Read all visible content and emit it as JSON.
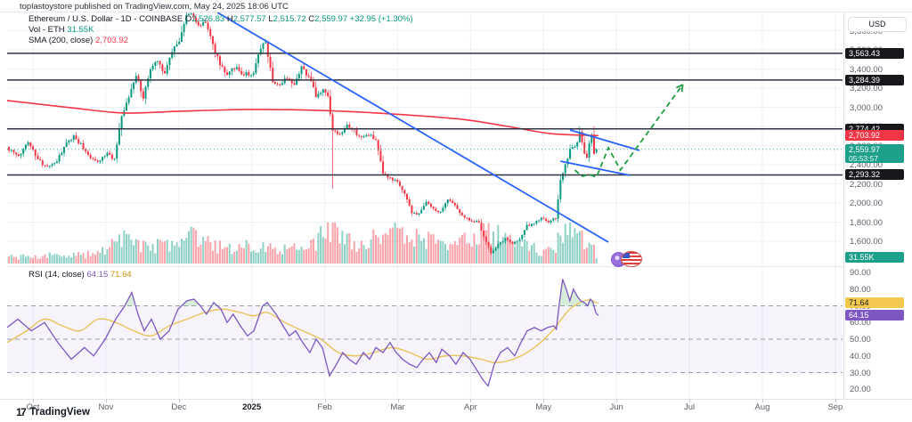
{
  "header": {
    "attribution": "toplastoystore published on TradingView.com, May 24, 2025 18:06 UTC"
  },
  "legend": {
    "title": "Ethereum / U.S. Dollar",
    "meta": "- 1D - COINBASE",
    "o_label": "O",
    "o": "2,526.83",
    "h_label": "H",
    "h": "2,577.57",
    "l_label": "L",
    "l": "2,515.72",
    "c_label": "C",
    "c": "2,559.97",
    "change": "+32.95 (+1.30%)",
    "vol_label": "Vol - ETH",
    "vol": "31.55K",
    "sma_label": "SMA (200, close)",
    "sma": "2,703.92",
    "rsi_label": "RSI (14, close)",
    "rsi_value": "64.15",
    "rsi_ma_value": "71.64"
  },
  "axes": {
    "currency": "USD",
    "price_ticks": [
      3800,
      3600,
      3400,
      3200,
      3000,
      2800,
      2600,
      2400,
      2200,
      2000,
      1800,
      1600
    ],
    "rsi_ticks": [
      90,
      80,
      70,
      60,
      50,
      40,
      30,
      20
    ],
    "months": [
      "Oct",
      "Nov",
      "Dec",
      "2025",
      "Feb",
      "Mar",
      "Apr",
      "May",
      "Jun",
      "Jul",
      "Aug",
      "Sep"
    ],
    "bold_month_index": 3
  },
  "badges": {
    "price": [
      {
        "text": "3,563.43",
        "price": 3563.43,
        "kind": "dark"
      },
      {
        "text": "3,284.39",
        "price": 3284.39,
        "kind": "dark"
      },
      {
        "text": "2,774.42",
        "price": 2774.42,
        "kind": "dark"
      },
      {
        "text": "2,703.92",
        "price": 2703.92,
        "kind": "red"
      },
      {
        "text": "2,559.97",
        "price": 2559.97,
        "kind": "teal",
        "sub": "05:53:57"
      },
      {
        "text": "2,293.32",
        "price": 2293.32,
        "kind": "dark"
      }
    ],
    "volume": {
      "text": "31.55K",
      "kind": "teal"
    },
    "rsi": [
      {
        "text": "71.64",
        "value": 71.64,
        "kind": "yellow"
      },
      {
        "text": "64.15",
        "value": 64.15,
        "kind": "purple"
      }
    ]
  },
  "colors": {
    "up": "#089981",
    "down": "#f23645",
    "sma": "#f23645",
    "trendline": "#2962ff",
    "projection": "#1f9d40",
    "level": "#2f3240",
    "grid": "#eef1f7",
    "rsi_line": "#7e57c2",
    "rsi_ma": "#e8c35a",
    "rsi_band": "#7e57c2",
    "badge_dark": "#17181c",
    "badge_red": "#f23645",
    "badge_teal": "#1ca089",
    "badge_yellow": "#f2c94c",
    "badge_purple": "#7e57c2",
    "last_price_line": "#26a69a"
  },
  "chart_data": {
    "type": "candlestick",
    "title": "Ethereum / U.S. Dollar, 1D, COINBASE",
    "last_ohlc": {
      "o": 2526.83,
      "h": 2577.57,
      "l": 2515.72,
      "c": 2559.97,
      "change": 32.95,
      "change_pct": 1.3
    },
    "price_axis_range_approx": [
      1390,
      3990
    ],
    "render_seed": 42,
    "price_keyframes": [
      [
        -11,
        2580
      ],
      [
        -6,
        2480
      ],
      [
        -2,
        2650
      ],
      [
        2,
        2450
      ],
      [
        6,
        2370
      ],
      [
        10,
        2440
      ],
      [
        14,
        2620
      ],
      [
        17,
        2700
      ],
      [
        20,
        2610
      ],
      [
        24,
        2480
      ],
      [
        27,
        2430
      ],
      [
        31,
        2520
      ],
      [
        34,
        2450
      ],
      [
        37,
        2900
      ],
      [
        40,
        3100
      ],
      [
        43,
        3350
      ],
      [
        46,
        3100
      ],
      [
        49,
        3400
      ],
      [
        52,
        3500
      ],
      [
        55,
        3350
      ],
      [
        58,
        3600
      ],
      [
        61,
        3700
      ],
      [
        64,
        3950
      ],
      [
        66,
        3990
      ],
      [
        69,
        3850
      ],
      [
        72,
        3900
      ],
      [
        75,
        3650
      ],
      [
        78,
        3450
      ],
      [
        81,
        3350
      ],
      [
        84,
        3420
      ],
      [
        87,
        3350
      ],
      [
        92,
        3350
      ],
      [
        95,
        3620
      ],
      [
        97,
        3680
      ],
      [
        100,
        3280
      ],
      [
        103,
        3220
      ],
      [
        106,
        3320
      ],
      [
        109,
        3250
      ],
      [
        112,
        3430
      ],
      [
        115,
        3320
      ],
      [
        118,
        3120
      ],
      [
        121,
        3180
      ],
      [
        123,
        3110
      ],
      [
        125,
        2750
      ],
      [
        128,
        2700
      ],
      [
        131,
        2800
      ],
      [
        134,
        2750
      ],
      [
        137,
        2680
      ],
      [
        140,
        2720
      ],
      [
        143,
        2650
      ],
      [
        146,
        2300
      ],
      [
        149,
        2250
      ],
      [
        152,
        2220
      ],
      [
        155,
        2100
      ],
      [
        158,
        1900
      ],
      [
        161,
        1880
      ],
      [
        164,
        2020
      ],
      [
        167,
        1930
      ],
      [
        170,
        1900
      ],
      [
        173,
        2050
      ],
      [
        176,
        1980
      ],
      [
        179,
        1870
      ],
      [
        182,
        1830
      ],
      [
        186,
        1790
      ],
      [
        189,
        1590
      ],
      [
        191,
        1480
      ],
      [
        194,
        1560
      ],
      [
        197,
        1630
      ],
      [
        200,
        1580
      ],
      [
        203,
        1620
      ],
      [
        206,
        1760
      ],
      [
        209,
        1790
      ],
      [
        212,
        1840
      ],
      [
        215,
        1800
      ],
      [
        218,
        1840
      ],
      [
        220,
        2230
      ],
      [
        222,
        2400
      ],
      [
        224,
        2550
      ],
      [
        227,
        2620
      ],
      [
        228,
        2740
      ],
      [
        230,
        2520
      ],
      [
        231,
        2460
      ],
      [
        232,
        2640
      ],
      [
        233,
        2700
      ],
      [
        234,
        2527
      ],
      [
        235,
        2560
      ]
    ],
    "wick_overrides": [
      {
        "day": 66,
        "high": 4090
      },
      {
        "day": 125,
        "low": 2150
      }
    ],
    "day_range": [
      -11,
      235
    ],
    "volume_keyframes": [
      [
        -11,
        60
      ],
      [
        10,
        75
      ],
      [
        25,
        85
      ],
      [
        37,
        220
      ],
      [
        45,
        180
      ],
      [
        55,
        170
      ],
      [
        62,
        200
      ],
      [
        66,
        260
      ],
      [
        75,
        170
      ],
      [
        85,
        140
      ],
      [
        95,
        180
      ],
      [
        105,
        140
      ],
      [
        115,
        130
      ],
      [
        125,
        380
      ],
      [
        132,
        210
      ],
      [
        140,
        180
      ],
      [
        146,
        350
      ],
      [
        152,
        300
      ],
      [
        158,
        260
      ],
      [
        166,
        200
      ],
      [
        175,
        190
      ],
      [
        183,
        210
      ],
      [
        191,
        300
      ],
      [
        198,
        200
      ],
      [
        205,
        160
      ],
      [
        212,
        120
      ],
      [
        218,
        140
      ],
      [
        221,
        320
      ],
      [
        226,
        270
      ],
      [
        230,
        210
      ],
      [
        233,
        170
      ],
      [
        235,
        80
      ]
    ],
    "volume_last_label": "31.55K",
    "sma200_points": [
      [
        -10.8,
        3070
      ],
      [
        16,
        2995
      ],
      [
        38,
        2940
      ],
      [
        60,
        2958
      ],
      [
        90,
        2977
      ],
      [
        120,
        2967
      ],
      [
        150,
        2930
      ],
      [
        179,
        2874
      ],
      [
        198,
        2800
      ],
      [
        216,
        2725
      ],
      [
        235.8,
        2704
      ]
    ],
    "sma200_last": 2703.92,
    "levels": [
      3563.43,
      3284.39,
      2774.42,
      2293.32
    ],
    "last_price": 2559.97,
    "countdown": "05:53:57",
    "trendlines": [
      {
        "name": "main-downtrend",
        "from": [
          77,
          3990
        ],
        "to": [
          240,
          1591
        ]
      },
      {
        "name": "flag-upper",
        "from": [
          224,
          2763
        ],
        "to": [
          253,
          2549
        ]
      },
      {
        "name": "flag-lower",
        "from": [
          220,
          2437
        ],
        "to": [
          249,
          2288
        ]
      }
    ],
    "projection_points": [
      [
        226,
        2344
      ],
      [
        229,
        2279
      ],
      [
        232,
        2298
      ],
      [
        235,
        2270
      ],
      [
        240,
        2577
      ],
      [
        245,
        2344
      ],
      [
        271,
        3237
      ]
    ],
    "rsi": {
      "last": 64.15,
      "ma_last": 71.64,
      "overbought": 70,
      "middle": 50,
      "oversold": 30,
      "points": [
        [
          -10.8,
          57
        ],
        [
          -6.3,
          62
        ],
        [
          -0.7,
          55
        ],
        [
          4.8,
          60
        ],
        [
          10.4,
          48
        ],
        [
          16,
          38
        ],
        [
          21.5,
          45
        ],
        [
          25.3,
          40
        ],
        [
          30.1,
          50
        ],
        [
          34.5,
          62
        ],
        [
          38.3,
          70
        ],
        [
          41.2,
          78
        ],
        [
          43.8,
          65
        ],
        [
          46.4,
          55
        ],
        [
          49.4,
          62
        ],
        [
          53.1,
          50
        ],
        [
          56.8,
          55
        ],
        [
          60.5,
          68
        ],
        [
          64.2,
          73
        ],
        [
          67.2,
          74
        ],
        [
          69.8,
          70
        ],
        [
          72.4,
          65
        ],
        [
          75.4,
          72
        ],
        [
          78.4,
          68
        ],
        [
          81,
          60
        ],
        [
          83.5,
          65
        ],
        [
          86.5,
          58
        ],
        [
          89.5,
          52
        ],
        [
          92.1,
          55
        ],
        [
          95.8,
          70
        ],
        [
          97.7,
          72
        ],
        [
          101.4,
          65
        ],
        [
          104.3,
          58
        ],
        [
          106.9,
          52
        ],
        [
          109.6,
          55
        ],
        [
          112.5,
          48
        ],
        [
          115.5,
          42
        ],
        [
          118.1,
          50
        ],
        [
          120.7,
          45
        ],
        [
          123.7,
          28
        ],
        [
          126.6,
          35
        ],
        [
          129.2,
          42
        ],
        [
          131.8,
          38
        ],
        [
          134.8,
          35
        ],
        [
          137.8,
          42
        ],
        [
          140.4,
          38
        ],
        [
          143,
          45
        ],
        [
          146,
          42
        ],
        [
          148.9,
          48
        ],
        [
          151.5,
          42
        ],
        [
          154.1,
          38
        ],
        [
          157.1,
          35
        ],
        [
          160.1,
          33
        ],
        [
          162.7,
          38
        ],
        [
          165.3,
          42
        ],
        [
          168.2,
          36
        ],
        [
          170.5,
          44
        ],
        [
          173.8,
          40
        ],
        [
          176.4,
          35
        ],
        [
          179.4,
          42
        ],
        [
          182.3,
          38
        ],
        [
          184.9,
          32
        ],
        [
          187.5,
          26
        ],
        [
          189.8,
          22
        ],
        [
          192.4,
          35
        ],
        [
          195,
          42
        ],
        [
          197.9,
          45
        ],
        [
          200.9,
          40
        ],
        [
          203.5,
          48
        ],
        [
          206.1,
          55
        ],
        [
          209.1,
          57
        ],
        [
          212,
          55
        ],
        [
          214.6,
          57
        ],
        [
          217.2,
          58
        ],
        [
          218.3,
          56
        ],
        [
          219.4,
          70
        ],
        [
          220.9,
          86
        ],
        [
          222.4,
          80
        ],
        [
          223.9,
          73
        ],
        [
          225.4,
          80
        ],
        [
          226.9,
          76
        ],
        [
          228.4,
          73
        ],
        [
          229.9,
          72
        ],
        [
          231.3,
          70
        ],
        [
          232.5,
          74
        ],
        [
          233.6,
          72
        ],
        [
          234.7,
          66
        ],
        [
          235.8,
          64.15
        ]
      ],
      "ma_points": [
        [
          -10.8,
          48
        ],
        [
          -2.6,
          55
        ],
        [
          4.8,
          62
        ],
        [
          12.3,
          58
        ],
        [
          19.7,
          55
        ],
        [
          27.1,
          62
        ],
        [
          34.5,
          60
        ],
        [
          42,
          55
        ],
        [
          49.4,
          52
        ],
        [
          56.8,
          58
        ],
        [
          64.2,
          62
        ],
        [
          71.7,
          66
        ],
        [
          79.1,
          68
        ],
        [
          86.5,
          66
        ],
        [
          92.1,
          64
        ],
        [
          97.7,
          66
        ],
        [
          105.1,
          60
        ],
        [
          112.5,
          55
        ],
        [
          120,
          50
        ],
        [
          127.4,
          42
        ],
        [
          134.8,
          40
        ],
        [
          142.2,
          42
        ],
        [
          149.7,
          45
        ],
        [
          157.1,
          42
        ],
        [
          164.5,
          38
        ],
        [
          172,
          40
        ],
        [
          179.4,
          40
        ],
        [
          186.8,
          38
        ],
        [
          192.4,
          36
        ],
        [
          197.9,
          37
        ],
        [
          203.5,
          40
        ],
        [
          209.1,
          45
        ],
        [
          214.6,
          52
        ],
        [
          218.3,
          58
        ],
        [
          220.9,
          63
        ],
        [
          223.9,
          68
        ],
        [
          226.9,
          71
        ],
        [
          229.9,
          73
        ],
        [
          232.5,
          73.5
        ],
        [
          234.7,
          72
        ],
        [
          235.8,
          71.64
        ]
      ]
    }
  },
  "footer": {
    "logo_mark": "17",
    "logo_text": "TradingView"
  }
}
